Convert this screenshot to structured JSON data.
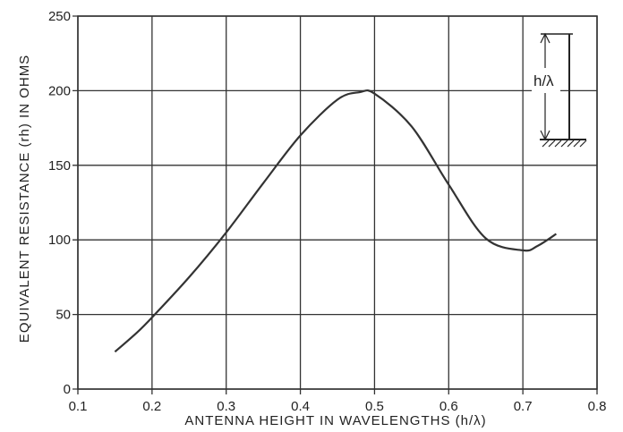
{
  "chart_data": {
    "type": "line",
    "xlabel": "ANTENNA HEIGHT IN WAVELENGTHS (h/λ)",
    "ylabel": "EQUIVALENT RESISTANCE (rh) IN OHMS",
    "xlim": [
      0.1,
      0.8
    ],
    "ylim": [
      0,
      250
    ],
    "x_ticks": [
      0.1,
      0.2,
      0.3,
      0.4,
      0.5,
      0.6,
      0.7,
      0.8
    ],
    "x_tick_labels": [
      "0.1",
      "0.2",
      "0.3",
      "0.4",
      "0.5",
      "0.6",
      "0.7",
      "0.8"
    ],
    "y_ticks": [
      0,
      50,
      100,
      150,
      200,
      250
    ],
    "y_tick_labels": [
      "0",
      "50",
      "100",
      "150",
      "200",
      "250"
    ],
    "grid": true,
    "series": [
      {
        "x": [
          0.15,
          0.18,
          0.2,
          0.25,
          0.3,
          0.35,
          0.4,
          0.45,
          0.48,
          0.5,
          0.55,
          0.6,
          0.65,
          0.7,
          0.72,
          0.745
        ],
        "y": [
          25,
          38,
          48,
          75,
          105,
          138,
          170,
          194,
          199,
          198,
          176,
          137,
          101,
          93,
          96,
          104
        ]
      }
    ],
    "inset": {
      "label": "h/λ",
      "icon": "antenna-height-diagram-icon"
    },
    "line_color": "#333333",
    "grid_color": "#333333"
  }
}
